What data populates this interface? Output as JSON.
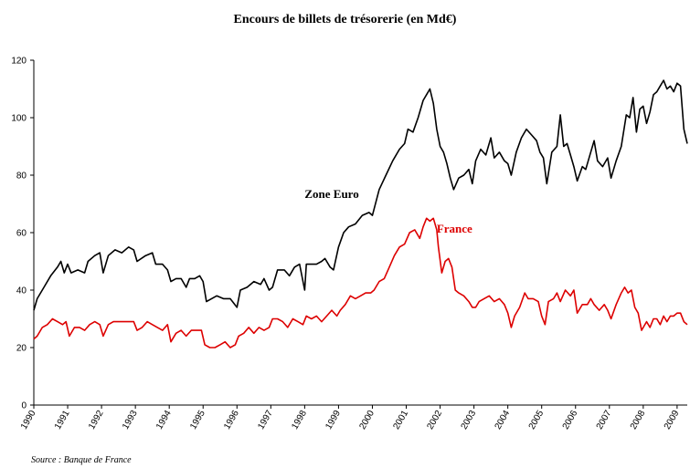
{
  "chart_data": {
    "type": "line",
    "title": "Encours de billets de trésorerie (en Md€)",
    "source": "Source : Banque de France",
    "x_range": [
      1990,
      2009.3
    ],
    "ylim": [
      0,
      120
    ],
    "yticks": [
      0,
      20,
      40,
      60,
      80,
      100,
      120
    ],
    "xticks": [
      "1990",
      "1991",
      "1992",
      "1993",
      "1994",
      "1995",
      "1996",
      "1997",
      "1998",
      "1999",
      "2000",
      "2001",
      "2002",
      "2003",
      "2004",
      "2005",
      "2006",
      "2007",
      "2008",
      "2009"
    ],
    "grid": false,
    "legend": "inline labels",
    "series": [
      {
        "name": "Zone Euro",
        "color": "#000000",
        "points": [
          [
            1990.0,
            33
          ],
          [
            1990.1,
            37
          ],
          [
            1990.3,
            41
          ],
          [
            1990.5,
            45
          ],
          [
            1990.7,
            48
          ],
          [
            1990.8,
            50
          ],
          [
            1990.9,
            46
          ],
          [
            1991.0,
            49
          ],
          [
            1991.1,
            46
          ],
          [
            1991.3,
            47
          ],
          [
            1991.5,
            46
          ],
          [
            1991.6,
            50
          ],
          [
            1991.8,
            52
          ],
          [
            1991.95,
            53
          ],
          [
            1992.05,
            46
          ],
          [
            1992.2,
            52
          ],
          [
            1992.4,
            54
          ],
          [
            1992.6,
            53
          ],
          [
            1992.8,
            55
          ],
          [
            1992.95,
            54
          ],
          [
            1993.05,
            50
          ],
          [
            1993.3,
            52
          ],
          [
            1993.5,
            53
          ],
          [
            1993.6,
            49
          ],
          [
            1993.8,
            49
          ],
          [
            1993.95,
            47
          ],
          [
            1994.05,
            43
          ],
          [
            1994.2,
            44
          ],
          [
            1994.35,
            44
          ],
          [
            1994.5,
            41
          ],
          [
            1994.6,
            44
          ],
          [
            1994.75,
            44
          ],
          [
            1994.9,
            45
          ],
          [
            1995.0,
            43
          ],
          [
            1995.1,
            36
          ],
          [
            1995.25,
            37
          ],
          [
            1995.4,
            38
          ],
          [
            1995.6,
            37
          ],
          [
            1995.8,
            37
          ],
          [
            1996.0,
            34
          ],
          [
            1996.1,
            40
          ],
          [
            1996.3,
            41
          ],
          [
            1996.5,
            43
          ],
          [
            1996.7,
            42
          ],
          [
            1996.8,
            44
          ],
          [
            1996.95,
            40
          ],
          [
            1997.05,
            41
          ],
          [
            1997.2,
            47
          ],
          [
            1997.4,
            47
          ],
          [
            1997.55,
            45
          ],
          [
            1997.7,
            48
          ],
          [
            1997.85,
            49
          ],
          [
            1998.0,
            40
          ],
          [
            1998.05,
            49
          ],
          [
            1998.2,
            49
          ],
          [
            1998.35,
            49
          ],
          [
            1998.5,
            50
          ],
          [
            1998.6,
            51
          ],
          [
            1998.75,
            48
          ],
          [
            1998.85,
            47
          ],
          [
            1999.0,
            55
          ],
          [
            1999.15,
            60
          ],
          [
            1999.3,
            62
          ],
          [
            1999.5,
            63
          ],
          [
            1999.7,
            66
          ],
          [
            1999.9,
            67
          ],
          [
            2000.0,
            66
          ],
          [
            2000.2,
            75
          ],
          [
            2000.4,
            80
          ],
          [
            2000.6,
            85
          ],
          [
            2000.8,
            89
          ],
          [
            2000.95,
            91
          ],
          [
            2001.05,
            96
          ],
          [
            2001.2,
            95
          ],
          [
            2001.35,
            100
          ],
          [
            2001.5,
            106
          ],
          [
            2001.6,
            108
          ],
          [
            2001.7,
            110
          ],
          [
            2001.8,
            105
          ],
          [
            2001.9,
            96
          ],
          [
            2002.0,
            90
          ],
          [
            2002.1,
            88
          ],
          [
            2002.2,
            84
          ],
          [
            2002.3,
            79
          ],
          [
            2002.4,
            75
          ],
          [
            2002.55,
            79
          ],
          [
            2002.7,
            80
          ],
          [
            2002.85,
            82
          ],
          [
            2002.95,
            77
          ],
          [
            2003.05,
            85
          ],
          [
            2003.2,
            89
          ],
          [
            2003.35,
            87
          ],
          [
            2003.5,
            93
          ],
          [
            2003.6,
            86
          ],
          [
            2003.75,
            88
          ],
          [
            2003.9,
            85
          ],
          [
            2004.0,
            84
          ],
          [
            2004.1,
            80
          ],
          [
            2004.25,
            88
          ],
          [
            2004.4,
            93
          ],
          [
            2004.55,
            96
          ],
          [
            2004.7,
            94
          ],
          [
            2004.85,
            92
          ],
          [
            2004.95,
            88
          ],
          [
            2005.05,
            86
          ],
          [
            2005.15,
            77
          ],
          [
            2005.3,
            88
          ],
          [
            2005.45,
            90
          ],
          [
            2005.55,
            101
          ],
          [
            2005.65,
            90
          ],
          [
            2005.75,
            91
          ],
          [
            2005.85,
            87
          ],
          [
            2005.95,
            83
          ],
          [
            2006.05,
            78
          ],
          [
            2006.2,
            83
          ],
          [
            2006.3,
            82
          ],
          [
            2006.45,
            88
          ],
          [
            2006.55,
            92
          ],
          [
            2006.65,
            85
          ],
          [
            2006.8,
            83
          ],
          [
            2006.95,
            86
          ],
          [
            2007.05,
            79
          ],
          [
            2007.2,
            85
          ],
          [
            2007.35,
            90
          ],
          [
            2007.5,
            101
          ],
          [
            2007.6,
            100
          ],
          [
            2007.7,
            107
          ],
          [
            2007.8,
            95
          ],
          [
            2007.9,
            103
          ],
          [
            2008.0,
            104
          ],
          [
            2008.1,
            98
          ],
          [
            2008.2,
            102
          ],
          [
            2008.3,
            108
          ],
          [
            2008.4,
            109
          ],
          [
            2008.5,
            111
          ],
          [
            2008.6,
            113
          ],
          [
            2008.7,
            110
          ],
          [
            2008.8,
            111
          ],
          [
            2008.9,
            109
          ],
          [
            2009.0,
            112
          ],
          [
            2009.1,
            111
          ],
          [
            2009.2,
            96
          ],
          [
            2009.3,
            91
          ]
        ]
      },
      {
        "name": "France",
        "color": "#dd0000",
        "points": [
          [
            1990.0,
            23
          ],
          [
            1990.1,
            24
          ],
          [
            1990.25,
            27
          ],
          [
            1990.4,
            28
          ],
          [
            1990.55,
            30
          ],
          [
            1990.7,
            29
          ],
          [
            1990.85,
            28
          ],
          [
            1990.95,
            29
          ],
          [
            1991.05,
            24
          ],
          [
            1991.2,
            27
          ],
          [
            1991.35,
            27
          ],
          [
            1991.5,
            26
          ],
          [
            1991.65,
            28
          ],
          [
            1991.8,
            29
          ],
          [
            1991.95,
            28
          ],
          [
            1992.05,
            24
          ],
          [
            1992.2,
            28
          ],
          [
            1992.35,
            29
          ],
          [
            1992.5,
            29
          ],
          [
            1992.65,
            29
          ],
          [
            1992.8,
            29
          ],
          [
            1992.95,
            29
          ],
          [
            1993.05,
            26
          ],
          [
            1993.2,
            27
          ],
          [
            1993.35,
            29
          ],
          [
            1993.5,
            28
          ],
          [
            1993.65,
            27
          ],
          [
            1993.8,
            26
          ],
          [
            1993.95,
            28
          ],
          [
            1994.05,
            22
          ],
          [
            1994.2,
            25
          ],
          [
            1994.35,
            26
          ],
          [
            1994.5,
            24
          ],
          [
            1994.65,
            26
          ],
          [
            1994.8,
            26
          ],
          [
            1994.95,
            26
          ],
          [
            1995.05,
            21
          ],
          [
            1995.2,
            20
          ],
          [
            1995.35,
            20
          ],
          [
            1995.5,
            21
          ],
          [
            1995.65,
            22
          ],
          [
            1995.8,
            20
          ],
          [
            1995.95,
            21
          ],
          [
            1996.05,
            24
          ],
          [
            1996.2,
            25
          ],
          [
            1996.35,
            27
          ],
          [
            1996.5,
            25
          ],
          [
            1996.65,
            27
          ],
          [
            1996.8,
            26
          ],
          [
            1996.95,
            27
          ],
          [
            1997.05,
            30
          ],
          [
            1997.2,
            30
          ],
          [
            1997.35,
            29
          ],
          [
            1997.5,
            27
          ],
          [
            1997.65,
            30
          ],
          [
            1997.8,
            29
          ],
          [
            1997.95,
            28
          ],
          [
            1998.05,
            31
          ],
          [
            1998.2,
            30
          ],
          [
            1998.35,
            31
          ],
          [
            1998.5,
            29
          ],
          [
            1998.65,
            31
          ],
          [
            1998.8,
            33
          ],
          [
            1998.95,
            31
          ],
          [
            1999.05,
            33
          ],
          [
            1999.2,
            35
          ],
          [
            1999.35,
            38
          ],
          [
            1999.5,
            37
          ],
          [
            1999.65,
            38
          ],
          [
            1999.8,
            39
          ],
          [
            1999.95,
            39
          ],
          [
            2000.05,
            40
          ],
          [
            2000.2,
            43
          ],
          [
            2000.35,
            44
          ],
          [
            2000.5,
            48
          ],
          [
            2000.65,
            52
          ],
          [
            2000.8,
            55
          ],
          [
            2000.95,
            56
          ],
          [
            2001.1,
            60
          ],
          [
            2001.25,
            61
          ],
          [
            2001.4,
            58
          ],
          [
            2001.5,
            62
          ],
          [
            2001.6,
            65
          ],
          [
            2001.7,
            64
          ],
          [
            2001.8,
            65
          ],
          [
            2001.9,
            61
          ],
          [
            2001.95,
            55
          ],
          [
            2002.05,
            46
          ],
          [
            2002.15,
            50
          ],
          [
            2002.25,
            51
          ],
          [
            2002.35,
            48
          ],
          [
            2002.45,
            40
          ],
          [
            2002.55,
            39
          ],
          [
            2002.7,
            38
          ],
          [
            2002.85,
            36
          ],
          [
            2002.95,
            34
          ],
          [
            2003.05,
            34
          ],
          [
            2003.15,
            36
          ],
          [
            2003.3,
            37
          ],
          [
            2003.45,
            38
          ],
          [
            2003.6,
            36
          ],
          [
            2003.75,
            37
          ],
          [
            2003.9,
            35
          ],
          [
            2004.0,
            32
          ],
          [
            2004.1,
            27
          ],
          [
            2004.2,
            31
          ],
          [
            2004.35,
            34
          ],
          [
            2004.5,
            39
          ],
          [
            2004.6,
            37
          ],
          [
            2004.75,
            37
          ],
          [
            2004.9,
            36
          ],
          [
            2005.0,
            31
          ],
          [
            2005.1,
            28
          ],
          [
            2005.2,
            36
          ],
          [
            2005.35,
            37
          ],
          [
            2005.45,
            39
          ],
          [
            2005.55,
            36
          ],
          [
            2005.7,
            40
          ],
          [
            2005.85,
            38
          ],
          [
            2005.95,
            40
          ],
          [
            2006.05,
            32
          ],
          [
            2006.2,
            35
          ],
          [
            2006.35,
            35
          ],
          [
            2006.45,
            37
          ],
          [
            2006.55,
            35
          ],
          [
            2006.7,
            33
          ],
          [
            2006.85,
            35
          ],
          [
            2006.95,
            33
          ],
          [
            2007.05,
            30
          ],
          [
            2007.2,
            35
          ],
          [
            2007.35,
            39
          ],
          [
            2007.45,
            41
          ],
          [
            2007.55,
            39
          ],
          [
            2007.65,
            40
          ],
          [
            2007.75,
            34
          ],
          [
            2007.85,
            32
          ],
          [
            2007.95,
            26
          ],
          [
            2008.1,
            29
          ],
          [
            2008.2,
            27
          ],
          [
            2008.3,
            30
          ],
          [
            2008.4,
            30
          ],
          [
            2008.5,
            28
          ],
          [
            2008.6,
            31
          ],
          [
            2008.7,
            29
          ],
          [
            2008.8,
            31
          ],
          [
            2008.9,
            31
          ],
          [
            2009.0,
            32
          ],
          [
            2009.1,
            32
          ],
          [
            2009.2,
            29
          ],
          [
            2009.3,
            28
          ]
        ]
      }
    ],
    "annotations": [
      {
        "text": "Zone Euro",
        "x": 1998.0,
        "y": 72,
        "color": "#000000"
      },
      {
        "text": "France",
        "x": 2001.9,
        "y": 60,
        "color": "#dd0000"
      }
    ]
  }
}
